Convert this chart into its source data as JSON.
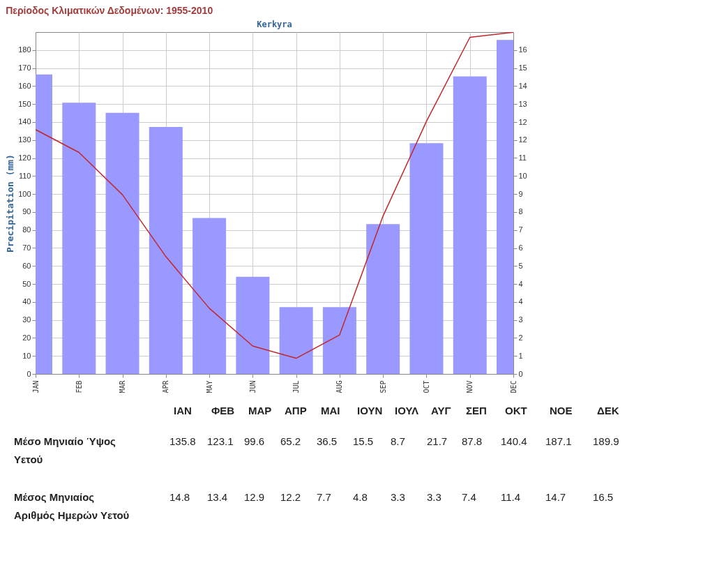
{
  "chart_data": [
    {
      "type": "bar",
      "title": "Kerkyra",
      "ylabel": "Precipitation (mm)",
      "categories": [
        "JAN",
        "FEB",
        "MAR",
        "APR",
        "MAY",
        "JUN",
        "JUL",
        "AUG",
        "SEP",
        "OCT",
        "NOV",
        "DEC"
      ],
      "series": [
        {
          "type": "line",
          "axis": "y",
          "color": "#c0282d",
          "values": [
            135.8,
            123.1,
            99.6,
            65.2,
            36.5,
            15.5,
            8.7,
            21.7,
            87.8,
            140.4,
            187.1,
            189.9
          ]
        },
        {
          "type": "bar",
          "axis": "y2",
          "color": "#9999ff",
          "values": [
            14.8,
            13.4,
            12.9,
            12.2,
            7.7,
            4.8,
            3.3,
            3.3,
            7.4,
            11.4,
            14.7,
            16.5
          ]
        }
      ],
      "ylim": [
        0,
        190
      ],
      "yticks": [
        0,
        10,
        20,
        30,
        40,
        50,
        60,
        70,
        80,
        90,
        100,
        110,
        120,
        130,
        140,
        150,
        160,
        170,
        180
      ],
      "y2lim": [
        0,
        16.89
      ],
      "y2ticks": [
        0,
        {
          "value": 0.89,
          "label": "1"
        },
        {
          "value": 1.78,
          "label": "2"
        },
        {
          "value": 2.67,
          "label": "3"
        },
        {
          "value": 3.56,
          "label": "4"
        },
        {
          "value": 4.44,
          "label": "4"
        },
        {
          "value": 5.33,
          "label": "5"
        },
        {
          "value": 6.22,
          "label": "6"
        },
        {
          "value": 7.11,
          "label": "7"
        },
        8,
        {
          "value": 8.89,
          "label": "9"
        },
        {
          "value": 9.78,
          "label": "10"
        },
        {
          "value": 10.67,
          "label": "11"
        },
        {
          "value": 11.56,
          "label": "12"
        },
        {
          "value": 12.44,
          "label": "12"
        },
        {
          "value": 13.33,
          "label": "13"
        },
        {
          "value": 14.22,
          "label": "14"
        },
        {
          "value": 15.11,
          "label": "15"
        },
        16
      ],
      "grid": true,
      "annotations": [
        "Περίοδος Κλιματικών Δεδομένων: 1955-2010"
      ]
    },
    {
      "type": "other",
      "categories": [
        "ΙΑΝ",
        "ΦΕΒ",
        "ΜΑΡ",
        "ΑΠΡ",
        "ΜΑΙ",
        "ΙΟΥΝ",
        "ΙΟΥΛ",
        "ΑΥΓ",
        "ΣΕΠ",
        "ΟΚΤ",
        "ΝΟΕ",
        "ΔΕΚ"
      ],
      "series": [
        {
          "name": "Μέσο Μηνιαίο Ύψος Υετού",
          "values": [
            135.8,
            123.1,
            99.6,
            65.2,
            36.5,
            15.5,
            8.7,
            21.7,
            87.8,
            140.4,
            187.1,
            189.9
          ]
        },
        {
          "name": "Μέσος Μηνιαίος Αριθμός Ημερών Υετού",
          "values": [
            14.8,
            13.4,
            12.9,
            12.2,
            7.7,
            4.8,
            3.3,
            3.3,
            7.4,
            11.4,
            14.7,
            16.5
          ]
        }
      ],
      "data_labels": true
    }
  ]
}
